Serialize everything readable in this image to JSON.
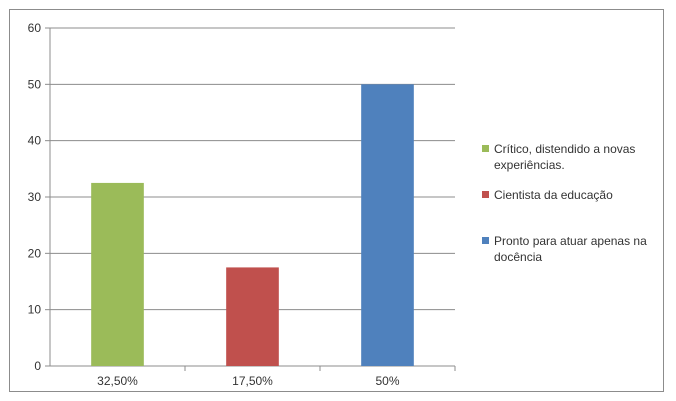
{
  "chart_data": {
    "type": "bar",
    "categories": [
      "32,50%",
      "17,50%",
      "50%"
    ],
    "values": [
      32.5,
      17.5,
      50
    ],
    "colors": [
      "#9bbb59",
      "#c0504d",
      "#4f81bd"
    ],
    "ylim": [
      0,
      60
    ],
    "yticks": [
      0,
      10,
      20,
      30,
      40,
      50,
      60
    ],
    "grid": true,
    "legend_position": "right",
    "legend": [
      {
        "lines": [
          "Crítico, distendido a novas",
          "experiências."
        ],
        "color": "#9bbb59"
      },
      {
        "lines": [
          "Cientista da educação"
        ],
        "color": "#c0504d"
      },
      {
        "lines": [
          "Pronto para atuar apenas na",
          "docência"
        ],
        "color": "#4f81bd"
      }
    ]
  }
}
